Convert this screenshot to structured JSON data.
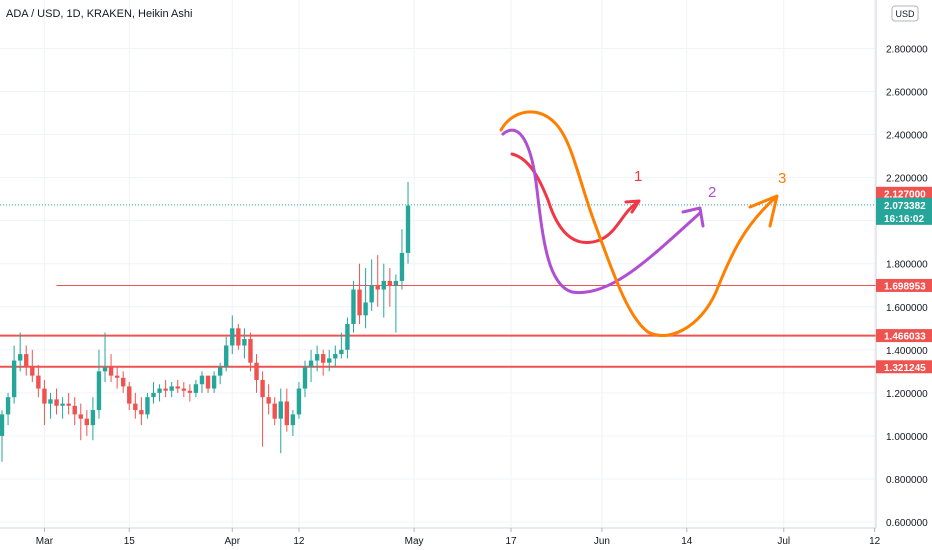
{
  "chart_data": {
    "type": "candlestick",
    "title": "ADA / USD, 1D, KRAKEN, Heikin Ashi",
    "currency": "USD",
    "ylim": [
      0.47,
      2.96
    ],
    "yticks": [
      0.6,
      0.8,
      1.0,
      1.2,
      1.4,
      1.6,
      1.8,
      2.0,
      2.2,
      2.4,
      2.6,
      2.8
    ],
    "ytick_labels": [
      "0.600000",
      "0.800000",
      "1.000000",
      "1.200000",
      "1.400000",
      "1.600000",
      "1.800000",
      "2.000000",
      "2.200000",
      "2.400000",
      "2.600000",
      "2.800000"
    ],
    "xticks": [
      {
        "label": "Mar",
        "day": 7
      },
      {
        "label": "15",
        "day": 21
      },
      {
        "label": "Apr",
        "day": 38
      },
      {
        "label": "12",
        "day": 49
      },
      {
        "label": "May",
        "day": 68
      },
      {
        "label": "17",
        "day": 84
      },
      {
        "label": "Jun",
        "day": 99
      },
      {
        "label": "14",
        "day": 113
      },
      {
        "label": "Jul",
        "day": 129
      },
      {
        "label": "12",
        "day": 144
      }
    ],
    "up_color": "#26a69a",
    "down_color": "#ef5350",
    "grid": true,
    "candles": [
      [
        1.0,
        1.12,
        0.88,
        1.1
      ],
      [
        1.1,
        1.2,
        1.05,
        1.18
      ],
      [
        1.18,
        1.42,
        1.15,
        1.35
      ],
      [
        1.35,
        1.48,
        1.3,
        1.38
      ],
      [
        1.38,
        1.42,
        1.28,
        1.32
      ],
      [
        1.32,
        1.4,
        1.25,
        1.28
      ],
      [
        1.28,
        1.33,
        1.18,
        1.22
      ],
      [
        1.22,
        1.26,
        1.05,
        1.15
      ],
      [
        1.15,
        1.2,
        1.08,
        1.17
      ],
      [
        1.17,
        1.22,
        1.1,
        1.14
      ],
      [
        1.14,
        1.18,
        1.08,
        1.15
      ],
      [
        1.15,
        1.2,
        1.1,
        1.14
      ],
      [
        1.14,
        1.18,
        1.05,
        1.1
      ],
      [
        1.1,
        1.15,
        0.98,
        1.08
      ],
      [
        1.08,
        1.12,
        1.0,
        1.05
      ],
      [
        1.05,
        1.18,
        0.98,
        1.12
      ],
      [
        1.12,
        1.4,
        1.08,
        1.3
      ],
      [
        1.3,
        1.48,
        1.25,
        1.32
      ],
      [
        1.32,
        1.38,
        1.25,
        1.28
      ],
      [
        1.28,
        1.32,
        1.22,
        1.27
      ],
      [
        1.27,
        1.3,
        1.2,
        1.23
      ],
      [
        1.23,
        1.25,
        1.12,
        1.15
      ],
      [
        1.15,
        1.2,
        1.08,
        1.12
      ],
      [
        1.12,
        1.18,
        1.05,
        1.1
      ],
      [
        1.1,
        1.2,
        1.08,
        1.18
      ],
      [
        1.18,
        1.25,
        1.15,
        1.2
      ],
      [
        1.2,
        1.24,
        1.16,
        1.22
      ],
      [
        1.22,
        1.26,
        1.18,
        1.21
      ],
      [
        1.21,
        1.25,
        1.18,
        1.23
      ],
      [
        1.23,
        1.26,
        1.2,
        1.22
      ],
      [
        1.22,
        1.25,
        1.18,
        1.21
      ],
      [
        1.21,
        1.24,
        1.16,
        1.2
      ],
      [
        1.2,
        1.26,
        1.18,
        1.24
      ],
      [
        1.24,
        1.3,
        1.2,
        1.28
      ],
      [
        1.28,
        1.26,
        1.2,
        1.22
      ],
      [
        1.22,
        1.3,
        1.2,
        1.28
      ],
      [
        1.28,
        1.34,
        1.24,
        1.32
      ],
      [
        1.32,
        1.46,
        1.3,
        1.42
      ],
      [
        1.42,
        1.56,
        1.38,
        1.5
      ],
      [
        1.5,
        1.52,
        1.4,
        1.42
      ],
      [
        1.42,
        1.5,
        1.36,
        1.45
      ],
      [
        1.45,
        1.48,
        1.3,
        1.34
      ],
      [
        1.34,
        1.38,
        1.2,
        1.26
      ],
      [
        1.26,
        1.3,
        0.95,
        1.18
      ],
      [
        1.18,
        1.24,
        1.1,
        1.15
      ],
      [
        1.15,
        1.18,
        1.05,
        1.08
      ],
      [
        1.08,
        1.22,
        0.92,
        1.16
      ],
      [
        1.16,
        1.22,
        1.02,
        1.05
      ],
      [
        1.05,
        1.12,
        1.0,
        1.1
      ],
      [
        1.1,
        1.25,
        1.08,
        1.22
      ],
      [
        1.22,
        1.35,
        1.18,
        1.32
      ],
      [
        1.32,
        1.4,
        1.25,
        1.35
      ],
      [
        1.35,
        1.42,
        1.3,
        1.38
      ],
      [
        1.38,
        1.4,
        1.28,
        1.34
      ],
      [
        1.34,
        1.4,
        1.3,
        1.36
      ],
      [
        1.36,
        1.42,
        1.32,
        1.38
      ],
      [
        1.38,
        1.48,
        1.36,
        1.4
      ],
      [
        1.4,
        1.55,
        1.36,
        1.52
      ],
      [
        1.52,
        1.72,
        1.48,
        1.68
      ],
      [
        1.68,
        1.8,
        1.52,
        1.56
      ],
      [
        1.56,
        1.78,
        1.5,
        1.62
      ],
      [
        1.62,
        1.82,
        1.58,
        1.7
      ],
      [
        1.7,
        1.84,
        1.6,
        1.68
      ],
      [
        1.68,
        1.8,
        1.55,
        1.72
      ],
      [
        1.72,
        1.78,
        1.6,
        1.7
      ],
      [
        1.7,
        1.75,
        1.48,
        1.72
      ],
      [
        1.72,
        1.96,
        1.68,
        1.85
      ],
      [
        1.85,
        2.18,
        1.8,
        2.07
      ]
    ],
    "levels": [
      {
        "value": 2.127,
        "label": "2.127000",
        "color": "#ef5350",
        "line": false
      },
      {
        "value": 1.698953,
        "label": "1.698953",
        "color": "#ef5350",
        "line": true,
        "from_day": 9,
        "width": 1
      },
      {
        "value": 1.466033,
        "label": "1.466033",
        "color": "#ef5350",
        "line": true,
        "from_day": -4,
        "width": 2
      },
      {
        "value": 1.321245,
        "label": "1.321245",
        "color": "#ef5350",
        "line": true,
        "from_day": -4,
        "width": 2
      }
    ],
    "current_price": {
      "value": 2.073382,
      "label": "2.073382",
      "countdown": "16:16:02",
      "color": "#26a69a"
    },
    "annotations": [
      {
        "text": "1",
        "color": "#f23645"
      },
      {
        "text": "2",
        "color": "#b04fd1"
      },
      {
        "text": "3",
        "color": "#ff7f00"
      }
    ]
  }
}
